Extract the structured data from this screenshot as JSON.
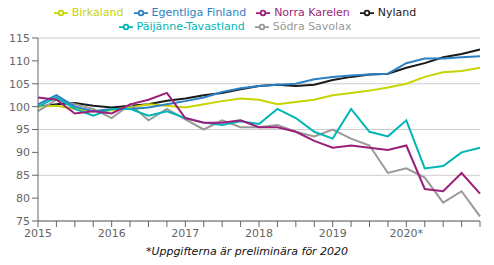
{
  "chart_data": {
    "type": "line",
    "footnote": "*Uppgifterna är preliminära för 2020",
    "categories": [
      "2015",
      null,
      null,
      null,
      "2016",
      null,
      null,
      null,
      "2017",
      null,
      null,
      null,
      "2018",
      null,
      null,
      null,
      "2019",
      null,
      null,
      null,
      "2020*",
      null,
      null,
      null,
      null
    ],
    "ylim": [
      75,
      115
    ],
    "yticks": [
      75,
      80,
      85,
      90,
      95,
      100,
      105,
      110,
      115
    ],
    "grid": "y",
    "legend": "top",
    "series": [
      {
        "name": "Nyland",
        "color": "#1a1a1a",
        "values": [
          100.0,
          100.5,
          100.8,
          100.2,
          99.8,
          100.2,
          100.5,
          101.3,
          101.8,
          102.5,
          103.0,
          103.8,
          104.5,
          104.8,
          104.5,
          104.8,
          105.8,
          106.5,
          107.0,
          107.2,
          108.5,
          109.5,
          110.8,
          111.5,
          112.5
        ]
      },
      {
        "name": "Birkaland",
        "color": "#c8d400",
        "values": [
          100.0,
          100.2,
          99.5,
          99.0,
          99.2,
          99.8,
          100.5,
          100.2,
          99.8,
          100.5,
          101.2,
          101.8,
          101.5,
          100.5,
          101.0,
          101.5,
          102.5,
          103.0,
          103.5,
          104.2,
          105.0,
          106.5,
          107.5,
          107.8,
          108.5
        ]
      },
      {
        "name": "Södra Savolax",
        "color": "#999999",
        "values": [
          99.0,
          101.5,
          100.5,
          99.5,
          97.5,
          100.5,
          97.0,
          99.5,
          97.2,
          95.0,
          97.0,
          95.5,
          95.5,
          96.0,
          94.5,
          93.5,
          95.0,
          93.0,
          91.5,
          85.5,
          86.5,
          84.5,
          79.0,
          81.5,
          76.0
        ]
      },
      {
        "name": "Egentliga Finland",
        "color": "#2b7fc3",
        "values": [
          100.5,
          102.5,
          100.0,
          99.0,
          99.5,
          99.5,
          99.8,
          100.5,
          101.2,
          102.0,
          103.2,
          104.0,
          104.5,
          104.8,
          105.0,
          106.0,
          106.5,
          106.8,
          107.0,
          107.2,
          109.5,
          110.5,
          110.5,
          110.8,
          111.0
        ]
      },
      {
        "name": "Päijänne-Tavastland",
        "color": "#00b5b5",
        "values": [
          100.0,
          102.0,
          99.5,
          98.0,
          99.5,
          99.5,
          98.0,
          99.0,
          97.5,
          96.5,
          96.0,
          96.8,
          96.2,
          99.5,
          97.5,
          94.5,
          93.0,
          99.5,
          94.5,
          93.5,
          97.0,
          86.5,
          87.0,
          90.0,
          91.0
        ]
      },
      {
        "name": "Norra Karelen",
        "color": "#9b1f7a",
        "values": [
          102.0,
          101.5,
          98.5,
          99.0,
          98.5,
          100.5,
          101.5,
          103.0,
          97.5,
          96.5,
          96.5,
          97.0,
          95.5,
          95.5,
          94.5,
          92.5,
          91.0,
          91.5,
          91.0,
          90.5,
          91.5,
          82.0,
          81.5,
          85.5,
          81.0
        ]
      }
    ]
  }
}
